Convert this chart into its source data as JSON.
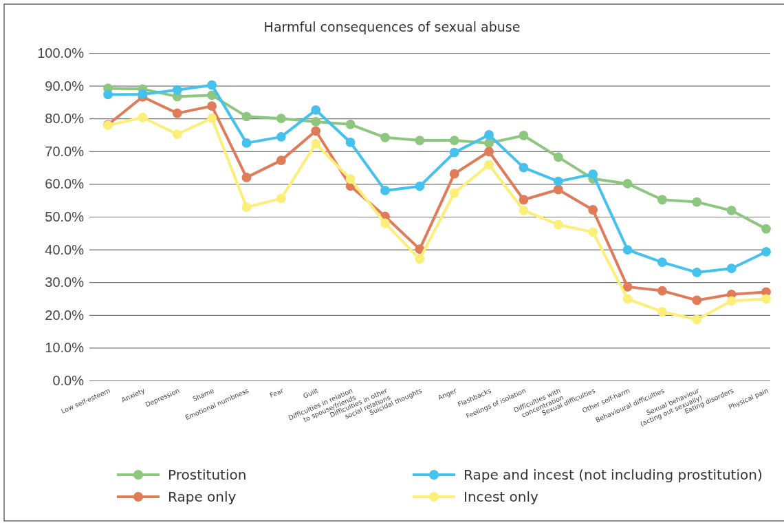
{
  "chart_data": {
    "type": "line",
    "title": "Harmful consequences of sexual abuse",
    "categories": [
      "Low self-esteem",
      "Anxiety",
      "Depression",
      "Shame",
      "Emotional numbness",
      "Fear",
      "Guilt",
      "Difficulties in relation\nto spouse/friends",
      "Difficulties in other\nsocial relations",
      "Suicidal thoughts",
      "Anger",
      "Flashbacks",
      "Feelings of isolation",
      "Difficulties with\nconcentration",
      "Sexual difficulties",
      "Other self-harm",
      "Behavioural difficulties",
      "Sexual behaviour\n(acting out sexually)",
      "Eating disorders",
      "Physical pain"
    ],
    "series": [
      {
        "name": "Prostitution",
        "color": "#8dc77f",
        "values": [
          89.2,
          89.0,
          86.7,
          87.1,
          80.6,
          80.0,
          79.0,
          78.2,
          74.2,
          73.3,
          73.3,
          72.5,
          74.8,
          68.2,
          61.6,
          60.1,
          55.2,
          54.5,
          51.9,
          46.3
        ]
      },
      {
        "name": "Rape only",
        "color": "#e07b5a",
        "values": [
          78.1,
          86.6,
          81.6,
          83.8,
          62.0,
          67.2,
          76.2,
          59.4,
          50.1,
          40.1,
          63.1,
          69.9,
          55.2,
          58.3,
          52.1,
          28.6,
          27.4,
          24.5,
          26.3,
          27.0
        ]
      },
      {
        "name": "Rape and incest (not including prostitution)",
        "color": "#44c1ec",
        "values": [
          87.3,
          87.4,
          88.7,
          90.2,
          72.5,
          74.4,
          82.6,
          72.7,
          58.0,
          59.3,
          69.6,
          75.0,
          65.0,
          60.8,
          63.0,
          39.9,
          36.1,
          33.0,
          34.2,
          39.3
        ]
      },
      {
        "name": "Incest only",
        "color": "#fbef7a",
        "values": [
          77.9,
          80.3,
          75.2,
          80.1,
          52.9,
          55.6,
          72.3,
          61.5,
          48.0,
          37.1,
          57.3,
          65.9,
          51.9,
          47.6,
          45.3,
          24.9,
          21.0,
          18.6,
          24.3,
          24.9
        ]
      }
    ],
    "ylim": [
      0,
      100
    ],
    "yticks": [
      {
        "value": 0,
        "label": "0.0%"
      },
      {
        "value": 10,
        "label": "10.0%"
      },
      {
        "value": 20,
        "label": "20.0%"
      },
      {
        "value": 30,
        "label": "30.0%"
      },
      {
        "value": 40,
        "label": "40.0%"
      },
      {
        "value": 50,
        "label": "50.0%"
      },
      {
        "value": 60,
        "label": "60.0%"
      },
      {
        "value": 70,
        "label": "70.0%"
      },
      {
        "value": 80,
        "label": "80.0%"
      },
      {
        "value": 90,
        "label": "90.0%"
      },
      {
        "value": 100,
        "label": "100.0%"
      }
    ],
    "grid": "y",
    "legend": "bottom",
    "marker": "circle",
    "line_style": "solid"
  }
}
